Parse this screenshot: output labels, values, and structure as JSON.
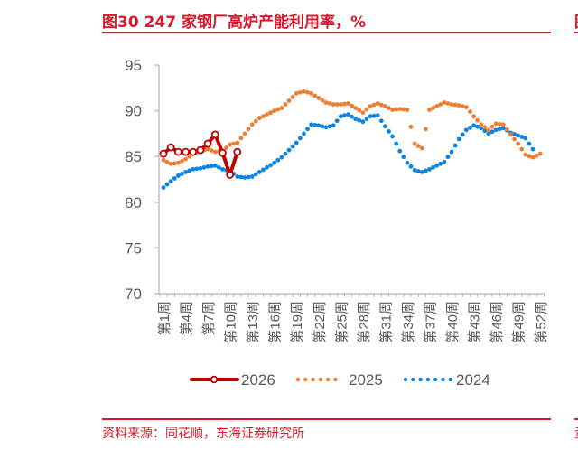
{
  "header": {
    "title": "图30  247 家钢厂高炉产能利用率，%"
  },
  "footer": {
    "source": "资料来源：同花顺，东海证券研究所"
  },
  "colors": {
    "accent": "#d9182d",
    "s2026": "#c00000",
    "s2025": "#ed7d31",
    "s2024": "#0a84e0",
    "axis": "#bfbfbf",
    "tick_text": "#595959"
  },
  "legend": [
    {
      "label": "2026",
      "style": "solid-marker"
    },
    {
      "label": "2025",
      "style": "dotted"
    },
    {
      "label": "2024",
      "style": "dotted"
    }
  ],
  "chart_data": {
    "type": "line",
    "title": "247 家钢厂高炉产能利用率，%",
    "xlabel": "",
    "ylabel": "",
    "ylim": [
      70,
      95
    ],
    "yticks": [
      70,
      75,
      80,
      85,
      90,
      95
    ],
    "grid": false,
    "legend_position": "bottom",
    "x_tick_labels": [
      "第1周",
      "第4周",
      "第7周",
      "第10周",
      "第13周",
      "第16周",
      "第19周",
      "第22周",
      "第25周",
      "第28周",
      "第31周",
      "第34周",
      "第37周",
      "第40周",
      "第43周",
      "第46周",
      "第49周",
      "第52周"
    ],
    "x": [
      1,
      2,
      3,
      4,
      5,
      6,
      7,
      8,
      9,
      10,
      11,
      12,
      13,
      14,
      15,
      16,
      17,
      18,
      19,
      20,
      21,
      22,
      23,
      24,
      25,
      26,
      27,
      28,
      29,
      30,
      31,
      32,
      33,
      34,
      35,
      36,
      37,
      38,
      39,
      40,
      41,
      42,
      43,
      44,
      45,
      46,
      47,
      48,
      49,
      50,
      51,
      52
    ],
    "series": [
      {
        "name": "2026",
        "values": [
          85.3,
          86.0,
          85.5,
          85.5,
          85.5,
          85.7,
          86.4,
          87.4,
          85.4,
          83.0,
          85.5
        ]
      },
      {
        "name": "2025",
        "values": [
          84.6,
          84.2,
          84.3,
          84.7,
          85.3,
          85.6,
          85.8,
          85.5,
          85.6,
          86.3,
          86.5,
          87.5,
          88.5,
          89.2,
          89.6,
          90.0,
          90.3,
          91.1,
          91.9,
          92.1,
          91.9,
          91.4,
          90.9,
          90.7,
          90.7,
          90.8,
          90.3,
          89.8,
          90.5,
          90.8,
          90.5,
          90.1,
          90.2,
          90.1,
          86.4,
          85.9,
          90.1,
          90.5,
          90.9,
          90.7,
          90.6,
          90.4,
          89.4,
          88.5,
          87.9,
          88.6,
          88.5,
          87.4,
          86.4,
          85.2,
          84.9,
          85.3
        ]
      },
      {
        "name": "2024",
        "values": [
          81.6,
          82.3,
          82.9,
          83.3,
          83.6,
          83.7,
          83.9,
          84.0,
          83.6,
          83.4,
          82.8,
          82.7,
          82.8,
          83.3,
          83.8,
          84.3,
          84.9,
          85.7,
          86.5,
          87.5,
          88.5,
          88.4,
          88.2,
          88.4,
          89.4,
          89.6,
          89.1,
          88.8,
          89.4,
          89.5,
          88.3,
          87.2,
          85.6,
          84.3,
          83.5,
          83.3,
          83.6,
          84.0,
          84.4,
          85.5,
          86.9,
          87.9,
          88.4,
          88.1,
          87.5,
          87.9,
          88.1,
          87.6,
          87.3,
          87.0,
          85.8
        ]
      }
    ]
  }
}
